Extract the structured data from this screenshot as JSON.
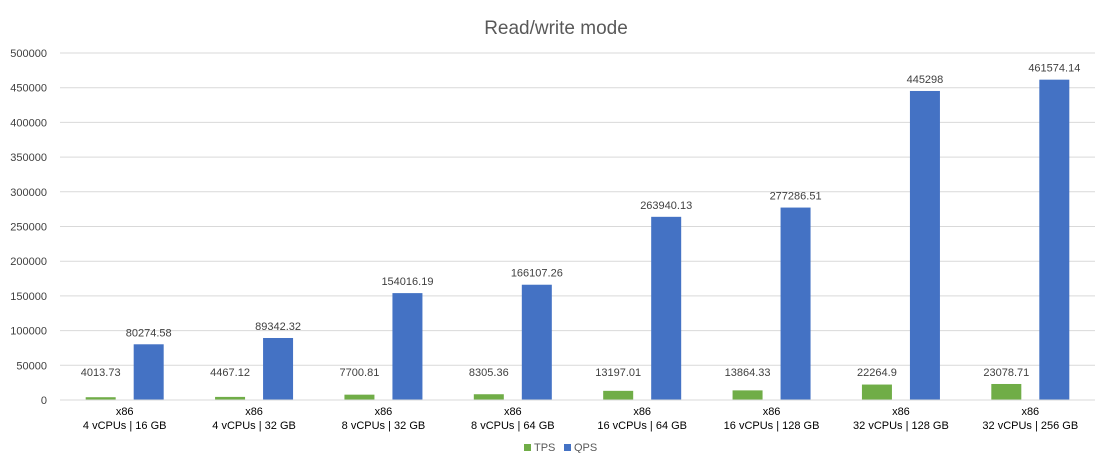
{
  "chart_data": {
    "type": "bar",
    "title": "Read/write mode",
    "xlabel": "",
    "ylabel": "",
    "ylim": [
      0,
      500000
    ],
    "yticks": [
      0,
      50000,
      100000,
      150000,
      200000,
      250000,
      300000,
      350000,
      400000,
      450000,
      500000
    ],
    "grid": true,
    "legend_position": "bottom",
    "categories": [
      [
        "x86",
        "4 vCPUs | 16 GB"
      ],
      [
        "x86",
        "4 vCPUs | 32 GB"
      ],
      [
        "x86",
        "8 vCPUs | 32 GB"
      ],
      [
        "x86",
        "8 vCPUs | 64 GB"
      ],
      [
        "x86",
        "16 vCPUs | 64 GB"
      ],
      [
        "x86",
        "16 vCPUs | 128 GB"
      ],
      [
        "x86",
        "32 vCPUs | 128 GB"
      ],
      [
        "x86",
        "32 vCPUs | 256 GB"
      ]
    ],
    "series": [
      {
        "name": "TPS",
        "color": "#70ad47",
        "values": [
          4013.73,
          4467.12,
          7700.81,
          8305.36,
          13197.01,
          13864.33,
          22264.9,
          23078.71
        ],
        "labels": [
          "4013.73",
          "4467.12",
          "7700.81",
          "8305.36",
          "13197.01",
          "13864.33",
          "22264.9",
          "23078.71"
        ]
      },
      {
        "name": "QPS",
        "color": "#4472c4",
        "values": [
          80274.58,
          89342.32,
          154016.19,
          166107.26,
          263940.13,
          277286.51,
          445298,
          461574.14
        ],
        "labels": [
          "80274.58",
          "89342.32",
          "154016.19",
          "166107.26",
          "263940.13",
          "277286.51",
          "445298",
          "461574.14"
        ]
      }
    ]
  }
}
